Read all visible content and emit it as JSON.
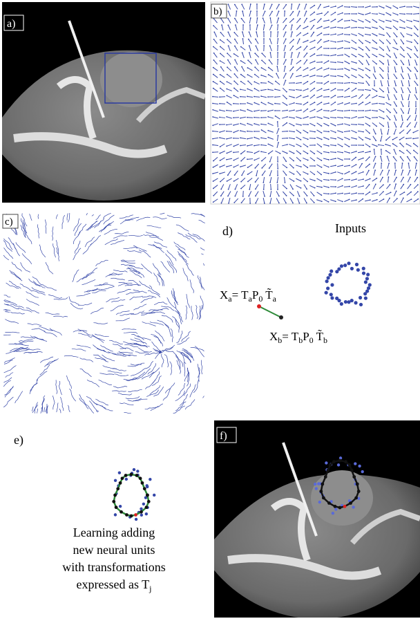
{
  "panels": {
    "a": {
      "label": "a)"
    },
    "b": {
      "label": "b)"
    },
    "c": {
      "label": "c)"
    },
    "d": {
      "label": "d)",
      "title": "Inputs",
      "formula_a": [
        {
          "text": "X"
        },
        {
          "text": "a",
          "sub": true
        },
        {
          "text": "= T"
        },
        {
          "text": "a",
          "sub": true
        },
        {
          "text": "P"
        },
        {
          "text": "0",
          "sub": true
        },
        {
          "text": " T̃"
        },
        {
          "text": "a",
          "sub": true
        }
      ],
      "formula_b": [
        {
          "text": "X"
        },
        {
          "text": "b",
          "sub": true
        },
        {
          "text": "= T"
        },
        {
          "text": "b",
          "sub": true
        },
        {
          "text": "P"
        },
        {
          "text": "0",
          "sub": true
        },
        {
          "text": " T̃"
        },
        {
          "text": "b",
          "sub": true
        }
      ]
    },
    "e": {
      "label": "e)",
      "caption": [
        "Learning adding",
        "new neural units",
        "with transformations",
        "expressed as T"
      ],
      "caption_sub": "j"
    },
    "f": {
      "label": "f)"
    }
  }
}
